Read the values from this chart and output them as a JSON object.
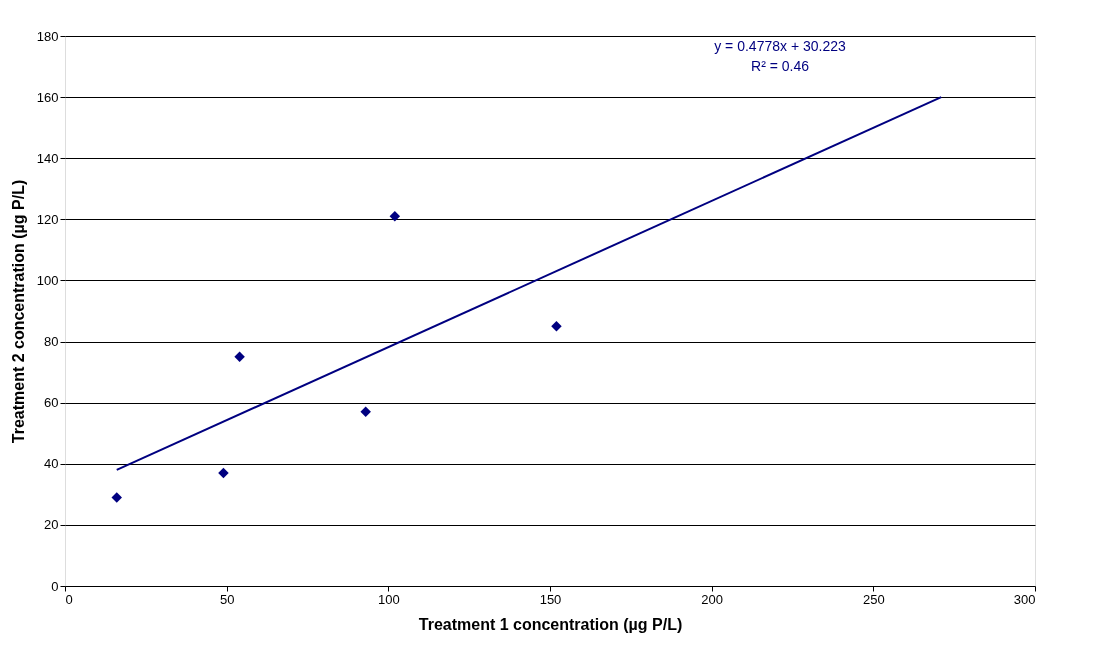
{
  "chart_data": {
    "type": "scatter",
    "xlabel": "Treatment 1 concentration (µg P/L)",
    "ylabel": "Treatment 2 concentration (µg P/L)",
    "annotations": [
      "y = 0.4778x + 30.223",
      "R² = 0.46"
    ],
    "xlim": [
      0,
      300
    ],
    "xticks": [
      0,
      50,
      100,
      150,
      200,
      250,
      300
    ],
    "ylim": [
      0,
      180
    ],
    "yticks": [
      0,
      20,
      40,
      60,
      80,
      100,
      120,
      140,
      160,
      180
    ],
    "grid": "y",
    "marker": "diamond",
    "series": [
      {
        "color": "#000080",
        "x": [
          16,
          49,
          54,
          93,
          102,
          152
        ],
        "values": [
          29,
          37,
          75,
          57,
          121,
          85
        ]
      },
      {
        "type": "line",
        "color": "#000080",
        "x": [
          16,
          271
        ],
        "values": [
          38,
          160
        ],
        "marker": "none",
        "line_style": "solid"
      }
    ]
  }
}
